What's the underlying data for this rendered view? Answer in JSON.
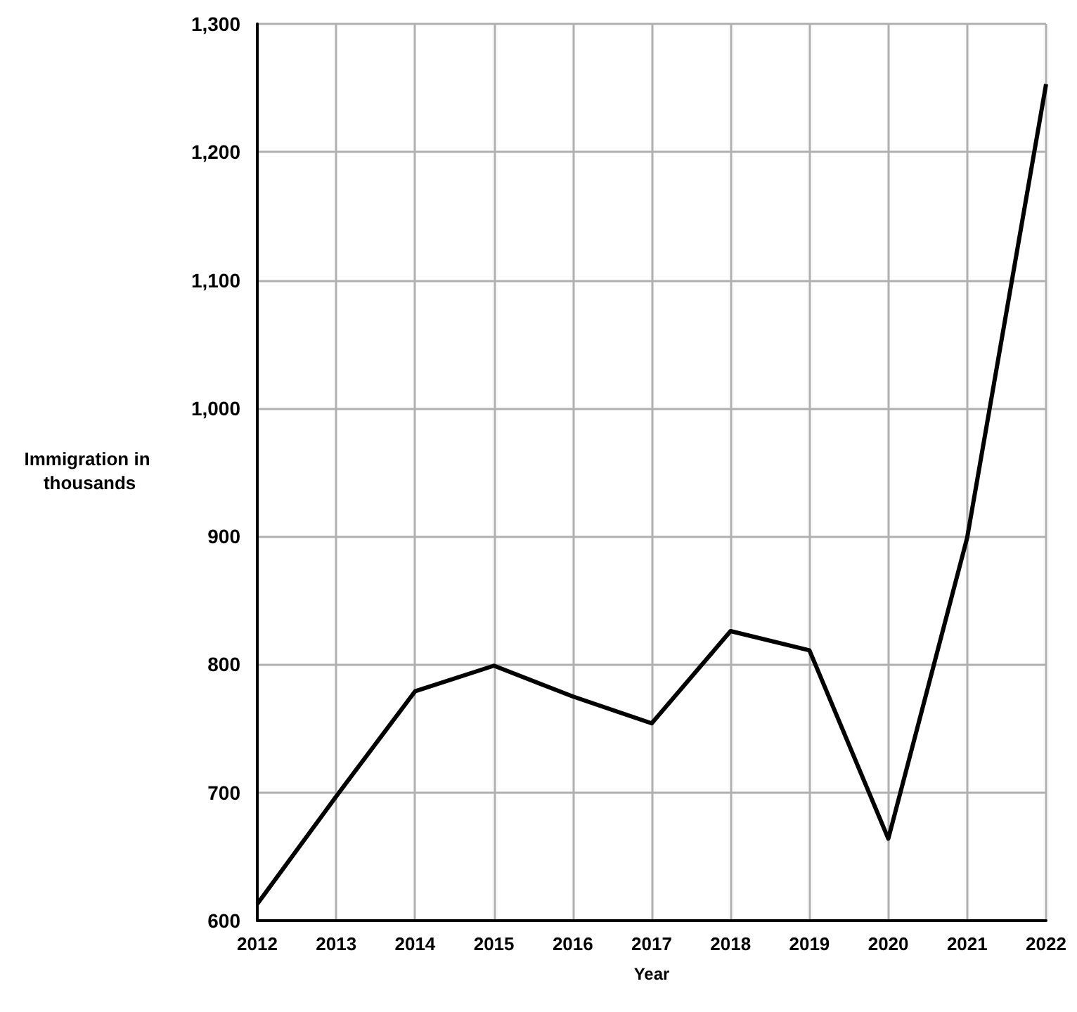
{
  "chart_data": {
    "type": "line",
    "xlabel": "Year",
    "ylabel": "Immigration in thousands",
    "categories": [
      "2012",
      "2013",
      "2014",
      "2015",
      "2016",
      "2017",
      "2018",
      "2019",
      "2020",
      "2021",
      "2022"
    ],
    "series": [
      {
        "color": "#000000",
        "values": [
          613,
          697,
          779,
          799,
          775,
          754,
          826,
          811,
          664,
          899,
          1253
        ]
      }
    ],
    "ylim": [
      600,
      1300
    ],
    "yticks": [
      {
        "value": 600,
        "label": "600"
      },
      {
        "value": 700,
        "label": "700"
      },
      {
        "value": 800,
        "label": "800"
      },
      {
        "value": 900,
        "label": "900"
      },
      {
        "value": 1000,
        "label": "1,000"
      },
      {
        "value": 1100,
        "label": "1,100"
      },
      {
        "value": 1200,
        "label": "1,200"
      },
      {
        "value": 1300,
        "label": "1,300"
      }
    ],
    "grid": true,
    "marker": "none",
    "line_style": "solid"
  }
}
